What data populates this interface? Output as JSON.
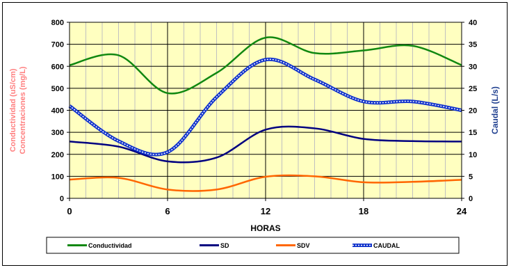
{
  "chart_data": {
    "type": "line",
    "xlabel": "HORAS",
    "ylabel_left": [
      "Conductividad (uS/cm)",
      "Concentraciones (mg/L)"
    ],
    "ylabel_right": "Caudal (L/s)",
    "x_ticks": [
      0,
      6,
      12,
      18,
      24
    ],
    "y_left_ticks": [
      0,
      100,
      200,
      300,
      400,
      500,
      600,
      700,
      800
    ],
    "y_right_ticks": [
      0,
      5,
      10,
      15,
      20,
      25,
      30,
      35,
      40
    ],
    "xlim": [
      0,
      24
    ],
    "ylim_left": [
      0,
      800
    ],
    "ylim_right": [
      0,
      40
    ],
    "grid": true,
    "legend_position": "bottom",
    "series": [
      {
        "name": "Conductividad",
        "axis": "left",
        "color": "#118811",
        "style": "solid",
        "x": [
          0,
          3,
          6,
          9,
          12,
          15,
          18,
          21,
          24
        ],
        "y": [
          605,
          650,
          478,
          570,
          730,
          660,
          672,
          693,
          605
        ]
      },
      {
        "name": "SD",
        "axis": "left",
        "color": "#000080",
        "style": "solid",
        "x": [
          0,
          3,
          6,
          9,
          12,
          15,
          18,
          21,
          24
        ],
        "y": [
          258,
          235,
          168,
          185,
          312,
          318,
          270,
          260,
          258
        ]
      },
      {
        "name": "SDV",
        "axis": "left",
        "color": "#ff6600",
        "style": "solid",
        "x": [
          0,
          3,
          6,
          9,
          12,
          15,
          18,
          21,
          24
        ],
        "y": [
          85,
          93,
          40,
          40,
          98,
          100,
          73,
          75,
          84
        ]
      },
      {
        "name": "CAUDAL",
        "axis": "right",
        "color": "#1133cc",
        "style": "hatched",
        "x": [
          0,
          3,
          6,
          9,
          12,
          15,
          18,
          21,
          24
        ],
        "y": [
          21,
          13,
          10.5,
          23,
          31.5,
          27,
          22,
          22,
          20
        ]
      }
    ]
  }
}
